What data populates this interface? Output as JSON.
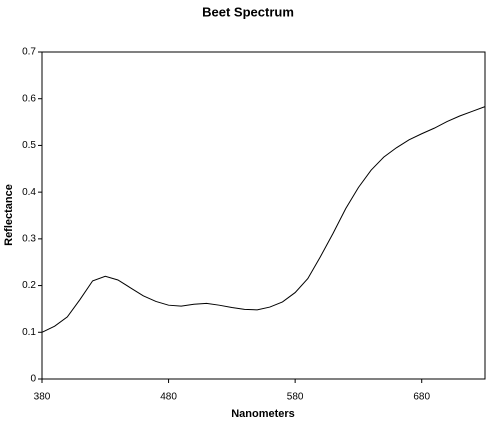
{
  "chart_data": {
    "type": "line",
    "title": "Beet Spectrum",
    "x_label": "Nanometers",
    "y_label": "Reflectance",
    "x": [
      380,
      390,
      400,
      410,
      420,
      430,
      440,
      450,
      460,
      470,
      480,
      490,
      500,
      510,
      520,
      530,
      540,
      550,
      560,
      570,
      580,
      590,
      600,
      610,
      620,
      630,
      640,
      650,
      660,
      670,
      680,
      690,
      700,
      710,
      720,
      730
    ],
    "series": [
      {
        "name": "Beet",
        "color": "#000000",
        "values": [
          0.1,
          0.113,
          0.133,
          0.17,
          0.21,
          0.22,
          0.212,
          0.195,
          0.178,
          0.166,
          0.158,
          0.156,
          0.16,
          0.162,
          0.158,
          0.153,
          0.149,
          0.148,
          0.154,
          0.165,
          0.185,
          0.215,
          0.262,
          0.312,
          0.365,
          0.41,
          0.447,
          0.475,
          0.495,
          0.512,
          0.525,
          0.537,
          0.551,
          0.563,
          0.573,
          0.583
        ]
      }
    ],
    "xlim": [
      380,
      730
    ],
    "xticks": [
      380,
      480,
      580,
      680
    ],
    "ylim": [
      0,
      0.7
    ],
    "yticks": [
      0,
      0.1,
      0.2,
      0.3,
      0.4,
      0.5,
      0.6,
      0.7
    ],
    "grid": false
  }
}
